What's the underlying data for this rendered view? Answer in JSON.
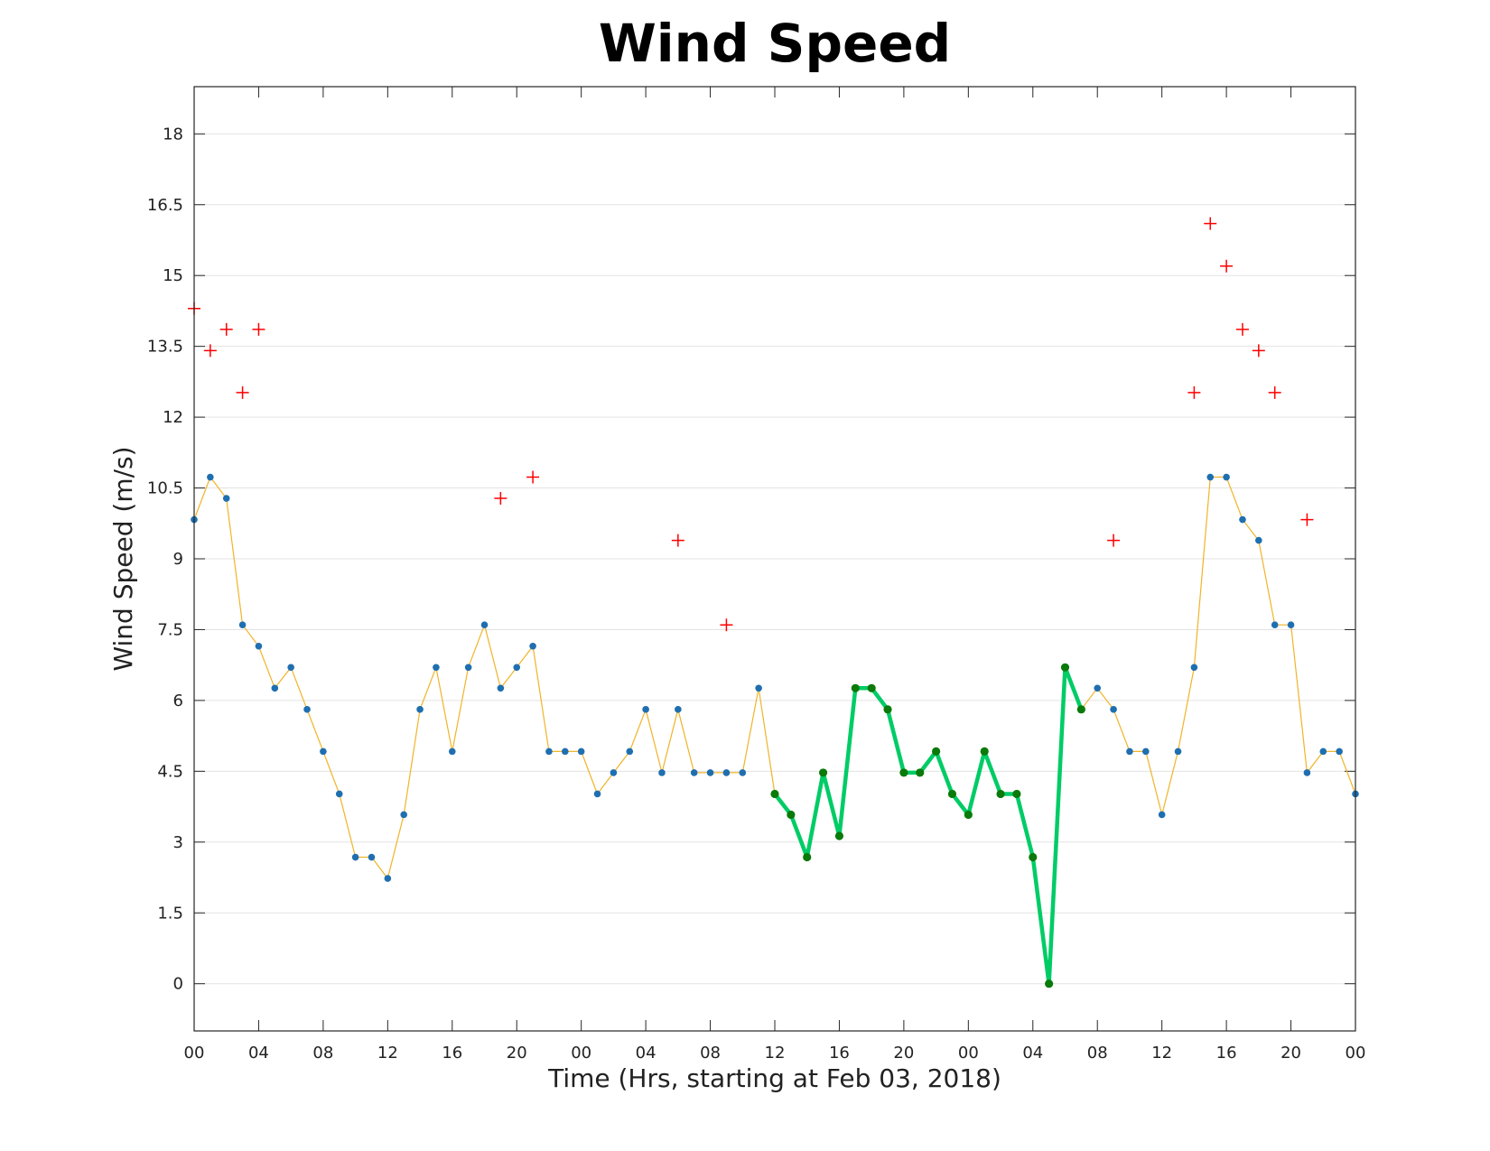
{
  "chart_data": {
    "type": "line",
    "title": "Wind Speed",
    "xlabel": "Time (Hrs, starting at Feb 03, 2018)",
    "ylabel": "Wind Speed (m/s)",
    "ylim": [
      -1,
      19
    ],
    "xlim": [
      "Feb 03, 2018 00:00",
      "Feb 06, 2018 00:00"
    ],
    "yticks": [
      "0",
      "1.5",
      "3",
      "4.5",
      "6",
      "7.5",
      "9",
      "10.5",
      "12",
      "13.5",
      "15",
      "16.5",
      "18"
    ],
    "xtick_labels": [
      "00",
      "04",
      "08",
      "12",
      "16",
      "20",
      "00",
      "04",
      "08",
      "12",
      "16",
      "20",
      "00",
      "04",
      "08",
      "12",
      "16",
      "20",
      "00"
    ],
    "grid": "horizontal",
    "colors": {
      "line": "#f0b428",
      "marker": "#1f6fb0",
      "highlight_line": "#00cc66",
      "highlight_marker": "#0a7a0a",
      "gust": "#ff0000"
    },
    "series": [
      {
        "kind": "speed",
        "x": [
          "2018-02-03 00:00",
          "2018-02-03 01:00",
          "2018-02-03 02:00",
          "2018-02-03 03:00",
          "2018-02-03 04:00",
          "2018-02-03 05:00",
          "2018-02-03 06:00",
          "2018-02-03 07:00",
          "2018-02-03 08:00",
          "2018-02-03 09:00",
          "2018-02-03 10:00",
          "2018-02-03 11:00",
          "2018-02-03 12:00",
          "2018-02-03 13:00",
          "2018-02-03 14:00",
          "2018-02-03 15:00",
          "2018-02-03 16:00",
          "2018-02-03 17:00",
          "2018-02-03 18:00",
          "2018-02-03 19:00",
          "2018-02-03 20:00",
          "2018-02-03 21:00",
          "2018-02-03 22:00",
          "2018-02-03 23:00",
          "2018-02-04 00:00",
          "2018-02-04 01:00",
          "2018-02-04 02:00",
          "2018-02-04 03:00",
          "2018-02-04 04:00",
          "2018-02-04 05:00",
          "2018-02-04 06:00",
          "2018-02-04 07:00",
          "2018-02-04 08:00",
          "2018-02-04 09:00",
          "2018-02-04 10:00",
          "2018-02-04 11:00",
          "2018-02-04 12:00",
          "2018-02-04 13:00",
          "2018-02-04 14:00",
          "2018-02-04 15:00",
          "2018-02-04 16:00",
          "2018-02-04 17:00",
          "2018-02-04 18:00",
          "2018-02-04 19:00",
          "2018-02-04 20:00",
          "2018-02-04 21:00",
          "2018-02-04 22:00",
          "2018-02-04 23:00",
          "2018-02-05 00:00",
          "2018-02-05 01:00",
          "2018-02-05 02:00",
          "2018-02-05 03:00",
          "2018-02-05 04:00",
          "2018-02-05 05:00",
          "2018-02-05 06:00",
          "2018-02-05 07:00",
          "2018-02-05 08:00",
          "2018-02-05 09:00",
          "2018-02-05 10:00",
          "2018-02-05 11:00",
          "2018-02-05 12:00",
          "2018-02-05 13:00",
          "2018-02-05 14:00",
          "2018-02-05 15:00",
          "2018-02-05 16:00",
          "2018-02-05 17:00",
          "2018-02-05 18:00",
          "2018-02-05 19:00",
          "2018-02-05 20:00",
          "2018-02-05 21:00",
          "2018-02-05 22:00",
          "2018-02-05 23:00",
          "2018-02-06 00:00"
        ],
        "values": [
          9.83,
          10.73,
          10.28,
          7.6,
          7.15,
          6.26,
          6.7,
          5.81,
          4.92,
          4.02,
          2.68,
          2.68,
          2.23,
          3.58,
          5.81,
          6.7,
          4.92,
          6.7,
          7.6,
          6.26,
          6.7,
          7.15,
          4.92,
          4.92,
          4.92,
          4.02,
          4.47,
          4.92,
          5.81,
          4.47,
          5.81,
          4.47,
          4.47,
          4.47,
          4.47,
          6.26,
          4.02,
          3.58,
          2.68,
          4.47,
          3.13,
          6.26,
          6.26,
          5.81,
          4.47,
          4.47,
          4.92,
          4.02,
          3.58,
          4.92,
          4.02,
          4.02,
          2.68,
          0.0,
          6.7,
          5.81,
          6.26,
          5.81,
          4.92,
          4.92,
          3.58,
          4.92,
          6.7,
          10.73,
          10.73,
          9.83,
          9.39,
          7.6,
          7.6,
          4.47,
          4.92,
          4.92,
          4.02
        ]
      },
      {
        "kind": "highlight",
        "x": [
          "2018-02-04 12:00",
          "2018-02-04 13:00",
          "2018-02-04 14:00",
          "2018-02-04 15:00",
          "2018-02-04 16:00",
          "2018-02-04 17:00",
          "2018-02-04 18:00",
          "2018-02-04 19:00",
          "2018-02-04 20:00",
          "2018-02-04 21:00",
          "2018-02-04 22:00",
          "2018-02-04 23:00",
          "2018-02-05 00:00",
          "2018-02-05 01:00",
          "2018-02-05 02:00",
          "2018-02-05 03:00",
          "2018-02-05 04:00",
          "2018-02-05 05:00",
          "2018-02-05 06:00",
          "2018-02-05 07:00"
        ],
        "values": [
          4.02,
          3.58,
          2.68,
          4.47,
          3.13,
          6.26,
          6.26,
          5.81,
          4.47,
          4.47,
          4.92,
          4.02,
          3.58,
          4.92,
          4.02,
          4.02,
          2.68,
          0.0,
          6.7,
          5.81
        ]
      },
      {
        "kind": "gust",
        "x": [
          "2018-02-03 00:00",
          "2018-02-03 01:00",
          "2018-02-03 02:00",
          "2018-02-03 03:00",
          "2018-02-03 04:00",
          "2018-02-03 19:00",
          "2018-02-03 21:00",
          "2018-02-04 06:00",
          "2018-02-04 09:00",
          "2018-02-05 09:00",
          "2018-02-05 14:00",
          "2018-02-05 15:00",
          "2018-02-05 16:00",
          "2018-02-05 17:00",
          "2018-02-05 18:00",
          "2018-02-05 19:00",
          "2018-02-05 21:00"
        ],
        "values": [
          14.3,
          13.41,
          13.86,
          12.52,
          13.86,
          10.28,
          10.73,
          9.39,
          7.6,
          9.39,
          12.52,
          16.1,
          15.2,
          13.86,
          13.41,
          12.52,
          9.83
        ]
      }
    ]
  }
}
